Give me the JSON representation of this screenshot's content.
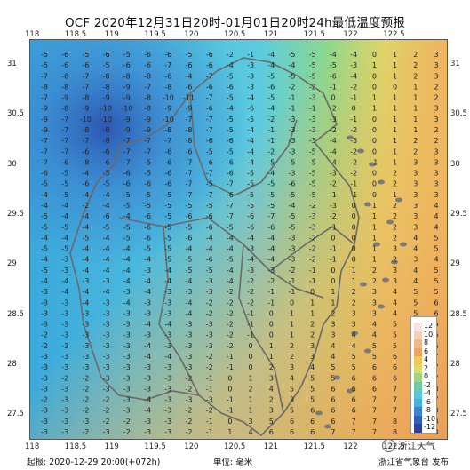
{
  "title": "OCF 2020年12月31日20时-01月01日20时24h最低温度预报",
  "lon_ticks": [
    "118",
    "118.5",
    "119",
    "119.5",
    "120",
    "120.5",
    "121",
    "121.5",
    "122",
    "122.5"
  ],
  "lat_ticks": [
    "31",
    "30.5",
    "30",
    "29.5",
    "29",
    "28.5",
    "28",
    "27.5"
  ],
  "legend": {
    "labels": [
      "12",
      "10",
      "8",
      "6",
      "4",
      "2",
      "0",
      "-2",
      "-4",
      "-6",
      "-8",
      "-10",
      "-12"
    ],
    "colors": [
      "#f7e4e0",
      "#f3d0b8",
      "#eeb98a",
      "#eda45c",
      "#f4c94f",
      "#d8dc6a",
      "#9fd47f",
      "#6ccaa3",
      "#5cc6d6",
      "#49aee2",
      "#3c86cf",
      "#3260b6",
      "#2d409a"
    ]
  },
  "footer": {
    "start": "起报: 2020-12-29 20:00(+072h)",
    "unit": "单位: 毫米",
    "publisher": "浙江省气象台 发布"
  },
  "watermark": "浙江天气",
  "grid_values": [
    [
      "-5",
      "-6",
      "-5",
      "-6",
      "-5",
      "-6",
      "-6",
      "-5",
      "-6",
      "-2",
      "-1",
      "-4",
      "-5",
      "-5",
      "-4",
      "-4",
      "0",
      "1",
      "2",
      "3"
    ],
    [
      "-5",
      "-6",
      "-6",
      "-5",
      "-6",
      "-6",
      "-7",
      "-6",
      "-6",
      "-4",
      "-3",
      "-4",
      "-4",
      "-5",
      "-5",
      "-3",
      "1",
      "1",
      "2",
      "3"
    ],
    [
      "-7",
      "-8",
      "-7",
      "-8",
      "-8",
      "-8",
      "-6",
      "-4",
      "-7",
      "-5",
      "-3",
      "-5",
      "-5",
      "-5",
      "-6",
      "-4",
      "0",
      "1",
      "2",
      "3"
    ],
    [
      "-8",
      "-8",
      "-7",
      "-8",
      "-9",
      "-7",
      "-8",
      "-6",
      "-6",
      "-6",
      "-3",
      "-6",
      "-2",
      "-2",
      "-1",
      "-2",
      "0",
      "0",
      "1",
      "2"
    ],
    [
      "-7",
      "-9",
      "-8",
      "-9",
      "-9",
      "-8",
      "-10",
      "-11",
      "-7",
      "-5",
      "-4",
      "-5",
      "-1",
      "-3",
      "0",
      "-1",
      "1",
      "1",
      "1",
      "2"
    ],
    [
      "-9",
      "-8",
      "-9",
      "-10",
      "-10",
      "-8",
      "-9",
      "-9",
      "-6",
      "-4",
      "-6",
      "-4",
      "-1",
      "-1",
      "-2",
      "0",
      "1",
      "1",
      "1",
      "3"
    ],
    [
      "-9",
      "-7",
      "-10",
      "-10",
      "-9",
      "-9",
      "-10",
      "-7",
      "-7",
      "-5",
      "-5",
      "-2",
      "-3",
      "-3",
      "-3",
      "-1",
      "0",
      "1",
      "1",
      "3"
    ],
    [
      "-9",
      "-7",
      "-8",
      "-8",
      "-9",
      "-9",
      "-8",
      "-8",
      "-7",
      "-5",
      "-4",
      "-1",
      "-3",
      "-3",
      "-2",
      "-2",
      "0",
      "1",
      "1",
      "2"
    ],
    [
      "-7",
      "-7",
      "-7",
      "-8",
      "-7",
      "-7",
      "-7",
      "-8",
      "-6",
      "-6",
      "-4",
      "-1",
      "-3",
      "-3",
      "-4",
      "-3",
      "0",
      "1",
      "2",
      "2"
    ],
    [
      "-7",
      "-7",
      "-6",
      "-6",
      "-7",
      "-7",
      "-6",
      "-6",
      "-5",
      "-5",
      "-4",
      "-2",
      "-3",
      "-5",
      "-4",
      "-2",
      "0",
      "1",
      "2",
      "3"
    ],
    [
      "-7",
      "-6",
      "-8",
      "-6",
      "-7",
      "-5",
      "-6",
      "-7",
      "-6",
      "-6",
      "-4",
      "-5",
      "-5",
      "-5",
      "-4",
      "-2",
      "-1",
      "1",
      "3",
      "3"
    ],
    [
      "-6",
      "-5",
      "-4",
      "-5",
      "-6",
      "-5",
      "-6",
      "-7",
      "-7",
      "-6",
      "-5",
      "-4",
      "-3",
      "-5",
      "-3",
      "-2",
      "0",
      "2",
      "3",
      "3"
    ],
    [
      "-5",
      "-5",
      "-6",
      "-5",
      "-6",
      "-6",
      "-6",
      "-7",
      "-5",
      "-7",
      "-5",
      "-5",
      "-6",
      "-5",
      "-2",
      "-1",
      "0",
      "2",
      "3",
      "3"
    ],
    [
      "-4",
      "-5",
      "-4",
      "-4",
      "-5",
      "-5",
      "-5",
      "-7",
      "-7",
      "-6",
      "-5",
      "-5",
      "-5",
      "-5",
      "-1",
      "-1",
      "0",
      "1",
      "3",
      "3"
    ],
    [
      "-4",
      "-4",
      "-2",
      "-4",
      "-5",
      "-5",
      "-5",
      "-5",
      "-5",
      "-7",
      "-5",
      "-5",
      "-4",
      "-2",
      "-3",
      "0",
      "1",
      "2",
      "3",
      "4"
    ],
    [
      "-5",
      "-4",
      "-4",
      "-6",
      "-4",
      "-6",
      "-5",
      "-6",
      "-6",
      "-7",
      "-6",
      "-7",
      "-5",
      "-3",
      "-2",
      "0",
      "1",
      "2",
      "3",
      "4"
    ],
    [
      "-5",
      "-5",
      "-4",
      "-5",
      "-5",
      "-6",
      "-5",
      "-5",
      "-6",
      "-5",
      "-6",
      "-6",
      "-5",
      "-3",
      "-1",
      "0",
      "1",
      "2",
      "3",
      "4"
    ],
    [
      "-4",
      "-4",
      "-5",
      "-4",
      "-5",
      "-6",
      "-5",
      "-6",
      "-4",
      "-4",
      "-4",
      "-4",
      "-3",
      "-2",
      "0",
      "0",
      "1",
      "2",
      "4",
      "5"
    ],
    [
      "-5",
      "-5",
      "-4",
      "-4",
      "-4",
      "-5",
      "-5",
      "-4",
      "-4",
      "-4",
      "-3",
      "-4",
      "-3",
      "-2",
      "-1",
      "0",
      "1",
      "3",
      "4",
      "5"
    ],
    [
      "-4",
      "-3",
      "-4",
      "-4",
      "-4",
      "-4",
      "-5",
      "-5",
      "-6",
      "-5",
      "-4",
      "-4",
      "-3",
      "-2",
      "-1",
      "0",
      "1",
      "2",
      "3",
      "4"
    ],
    [
      "-5",
      "-3",
      "-4",
      "-4",
      "-4",
      "-3",
      "-4",
      "-5",
      "-5",
      "-4",
      "-3",
      "-3",
      "-2",
      "-1",
      "0",
      "1",
      "2",
      "3",
      "4",
      "5"
    ],
    [
      "-4",
      "-4",
      "-3",
      "-3",
      "-4",
      "-4",
      "-4",
      "-4",
      "-3",
      "-4",
      "-2",
      "-2",
      "-1",
      "-1",
      "0",
      "1",
      "2",
      "3",
      "4",
      "5"
    ],
    [
      "-3",
      "-4",
      "-4",
      "-4",
      "-3",
      "-4",
      "-3",
      "-3",
      "-3",
      "-2",
      "-2",
      "-1",
      "-1",
      "0",
      "1",
      "2",
      "3",
      "4",
      "5",
      "5"
    ],
    [
      "-3",
      "-3",
      "-4",
      "-3",
      "-4",
      "-3",
      "-3",
      "-4",
      "-2",
      "-2",
      "-2",
      "-1",
      "0",
      "1",
      "1",
      "2",
      "3",
      "4",
      "5",
      "6"
    ],
    [
      "-3",
      "-3",
      "-3",
      "-3",
      "-3",
      "-3",
      "-3",
      "-4",
      "-2",
      "-2",
      "-1",
      "0",
      "1",
      "1",
      "2",
      "3",
      "3",
      "4",
      "5",
      "6"
    ],
    [
      "-3",
      "-3",
      "-3",
      "-3",
      "-3",
      "-4",
      "-4",
      "-3",
      "-3",
      "-2",
      "-1",
      "0",
      "1",
      "2",
      "3",
      "3",
      "4",
      "5",
      "6",
      "6"
    ],
    [
      "-2",
      "-3",
      "-3",
      "-3",
      "-3",
      "-3",
      "-3",
      "-3",
      "-3",
      "-2",
      "-1",
      "0",
      "1",
      "2",
      "3",
      "4",
      "4",
      "5",
      "6",
      "6"
    ],
    [
      "-2",
      "-3",
      "-3",
      "-3",
      "-3",
      "-4",
      "-3",
      "-3",
      "-3",
      "-2",
      "0",
      "1",
      "2",
      "3",
      "4",
      "4",
      "5",
      "5",
      "6",
      "6"
    ],
    [
      "-3",
      "-3",
      "-3",
      "-3",
      "-3",
      "-4",
      "-4",
      "-3",
      "-2",
      "-1",
      "0",
      "1",
      "2",
      "3",
      "4",
      "5",
      "5",
      "6",
      "6",
      "7"
    ],
    [
      "-3",
      "-3",
      "-3",
      "-3",
      "-3",
      "-3",
      "-3",
      "-3",
      "-2",
      "-1",
      "0",
      "2",
      "3",
      "4",
      "5",
      "5",
      "6",
      "6",
      "6",
      "7"
    ],
    [
      "-3",
      "-2",
      "-2",
      "-3",
      "-3",
      "-3",
      "-3",
      "-2",
      "-1",
      "0",
      "1",
      "3",
      "4",
      "5",
      "5",
      "6",
      "6",
      "6",
      "7",
      "7"
    ],
    [
      "-3",
      "-3",
      "-2",
      "-3",
      "-3",
      "-3",
      "-3",
      "-2",
      "-1",
      "0",
      "2",
      "4",
      "5",
      "5",
      "6",
      "6",
      "6",
      "7",
      "7",
      "8"
    ],
    [
      "-2",
      "-3",
      "-2",
      "-2",
      "-3",
      "-4",
      "-3",
      "-3",
      "-3",
      "-1",
      "1",
      "2",
      "3",
      "5",
      "6",
      "6",
      "7",
      "7",
      "7",
      "7"
    ],
    [
      "-3",
      "-3",
      "-2",
      "-2",
      "-3",
      "-4",
      "-3",
      "-2",
      "-2",
      "-1",
      "1",
      "3",
      "5",
      "6",
      "6",
      "6",
      "7",
      "7",
      "8",
      "8"
    ],
    [
      "-3",
      "-3",
      "-3",
      "-2",
      "-2",
      "-3",
      "-3",
      "-2",
      "-1",
      "0",
      "3",
      "5",
      "6",
      "6",
      "6",
      "7",
      "7",
      "8",
      "8",
      "8"
    ],
    [
      "-3",
      "-3",
      "-2",
      "-3",
      "-2",
      "-3",
      "-3",
      "-2",
      "-1",
      "1",
      "4",
      "6",
      "6",
      "6",
      "7",
      "7",
      "7",
      "8",
      "8",
      "8"
    ]
  ]
}
